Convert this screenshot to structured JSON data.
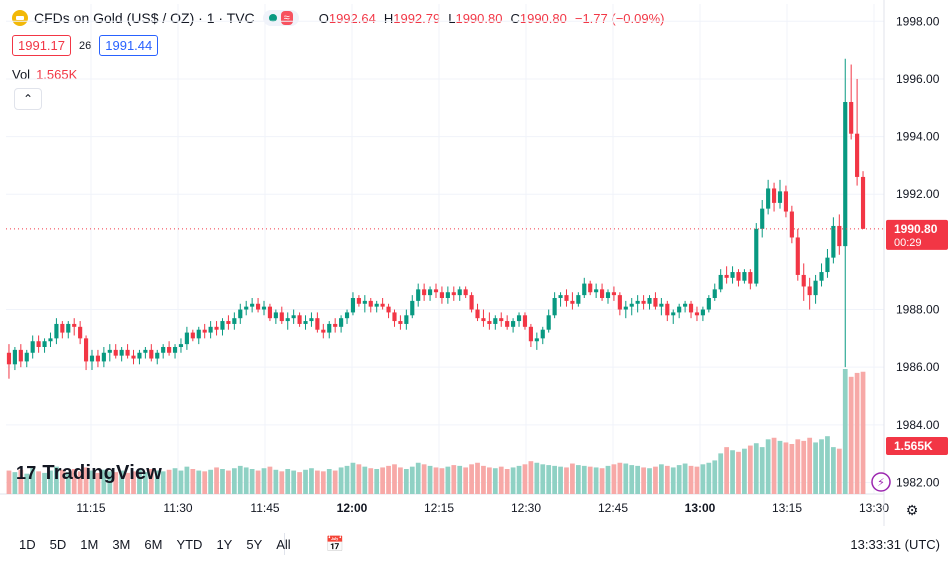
{
  "header": {
    "symbol_title": "CFDs on Gold (US$ / OZ) · 1 · TVC",
    "open_label": "O",
    "open": "1992.64",
    "high_label": "H",
    "high": "1992.79",
    "low_label": "L",
    "low": "1990.80",
    "close_label": "C",
    "close": "1990.80",
    "change": "−1.77 (−0.09%)",
    "bid": "1991.17",
    "spread": "26",
    "ask": "1991.44",
    "wave_icon_text": "≈"
  },
  "volume_legend": {
    "label": "Vol",
    "value": "1.565K"
  },
  "logo_text": "TradingView",
  "bottom_bar": {
    "ranges": [
      "1D",
      "5D",
      "1M",
      "3M",
      "6M",
      "YTD",
      "1Y",
      "5Y",
      "All"
    ],
    "clock": "13:33:31 (UTC)"
  },
  "colors": {
    "up": "#089981",
    "down": "#f23645",
    "up_vol": "#8fd1c4",
    "down_vol": "#f7a9a7",
    "grid": "#f0f3fa",
    "price_line": "#f23645"
  },
  "chart_data": {
    "type": "candlestick",
    "x_ticks": [
      "11:15",
      "11:30",
      "11:45",
      "12:00",
      "12:15",
      "12:30",
      "12:45",
      "13:00",
      "13:15",
      "13:30"
    ],
    "y_ticks": [
      "1998.00",
      "1996.00",
      "1994.00",
      "1992.00",
      "1988.00",
      "1986.00",
      "1984.00",
      "1982.00"
    ],
    "ylim": [
      1981.6,
      1998.6
    ],
    "last_price": "1990.80",
    "countdown": "00:29",
    "volume_label": "1.565K",
    "candles": [
      [
        1986.5,
        1986.8,
        1985.6,
        1986.1
      ],
      [
        1986.1,
        1986.7,
        1985.9,
        1986.6
      ],
      [
        1986.6,
        1986.8,
        1986.0,
        1986.2
      ],
      [
        1986.2,
        1986.6,
        1986.0,
        1986.5
      ],
      [
        1986.5,
        1987.1,
        1986.3,
        1986.9
      ],
      [
        1986.9,
        1987.1,
        1986.5,
        1986.7
      ],
      [
        1986.7,
        1987.0,
        1986.5,
        1986.9
      ],
      [
        1986.9,
        1987.2,
        1986.7,
        1987.0
      ],
      [
        1987.0,
        1987.7,
        1986.8,
        1987.5
      ],
      [
        1987.5,
        1987.6,
        1987.0,
        1987.2
      ],
      [
        1987.2,
        1987.6,
        1987.0,
        1987.5
      ],
      [
        1987.5,
        1987.7,
        1987.1,
        1987.4
      ],
      [
        1987.4,
        1987.6,
        1986.8,
        1987.0
      ],
      [
        1987.0,
        1987.1,
        1985.9,
        1986.2
      ],
      [
        1986.2,
        1986.6,
        1985.9,
        1986.4
      ],
      [
        1986.4,
        1986.6,
        1986.0,
        1986.2
      ],
      [
        1986.2,
        1986.7,
        1986.0,
        1986.5
      ],
      [
        1986.5,
        1986.8,
        1986.2,
        1986.6
      ],
      [
        1986.6,
        1986.8,
        1986.3,
        1986.4
      ],
      [
        1986.4,
        1986.7,
        1986.2,
        1986.6
      ],
      [
        1986.6,
        1986.8,
        1986.3,
        1986.4
      ],
      [
        1986.4,
        1986.6,
        1986.1,
        1986.3
      ],
      [
        1986.3,
        1986.6,
        1986.1,
        1986.5
      ],
      [
        1986.5,
        1986.7,
        1986.3,
        1986.6
      ],
      [
        1986.6,
        1986.8,
        1986.2,
        1986.3
      ],
      [
        1986.3,
        1986.6,
        1986.1,
        1986.5
      ],
      [
        1986.5,
        1986.8,
        1986.3,
        1986.7
      ],
      [
        1986.7,
        1986.9,
        1986.4,
        1986.5
      ],
      [
        1986.5,
        1986.8,
        1986.3,
        1986.7
      ],
      [
        1986.7,
        1987.0,
        1986.5,
        1986.8
      ],
      [
        1986.8,
        1987.4,
        1986.6,
        1987.2
      ],
      [
        1987.2,
        1987.3,
        1986.9,
        1987.0
      ],
      [
        1987.0,
        1987.4,
        1986.8,
        1987.3
      ],
      [
        1987.3,
        1987.5,
        1987.0,
        1987.2
      ],
      [
        1987.2,
        1987.6,
        1987.0,
        1987.4
      ],
      [
        1987.4,
        1987.6,
        1987.1,
        1987.3
      ],
      [
        1987.3,
        1987.7,
        1987.1,
        1987.6
      ],
      [
        1987.6,
        1987.8,
        1987.3,
        1987.5
      ],
      [
        1987.5,
        1987.9,
        1987.3,
        1987.7
      ],
      [
        1987.7,
        1988.2,
        1987.5,
        1988.0
      ],
      [
        1988.0,
        1988.3,
        1987.8,
        1988.1
      ],
      [
        1988.1,
        1988.4,
        1987.9,
        1988.2
      ],
      [
        1988.2,
        1988.4,
        1987.9,
        1988.0
      ],
      [
        1988.0,
        1988.3,
        1987.8,
        1988.1
      ],
      [
        1988.1,
        1988.2,
        1987.6,
        1987.7
      ],
      [
        1987.7,
        1988.0,
        1987.5,
        1987.9
      ],
      [
        1987.9,
        1988.1,
        1987.5,
        1987.6
      ],
      [
        1987.6,
        1987.9,
        1987.3,
        1987.7
      ],
      [
        1987.7,
        1988.0,
        1987.5,
        1987.8
      ],
      [
        1987.8,
        1987.9,
        1987.4,
        1987.5
      ],
      [
        1987.5,
        1987.8,
        1987.3,
        1987.6
      ],
      [
        1987.6,
        1987.9,
        1987.4,
        1987.7
      ],
      [
        1987.7,
        1987.9,
        1987.2,
        1987.3
      ],
      [
        1987.3,
        1987.5,
        1987.0,
        1987.2
      ],
      [
        1987.2,
        1987.6,
        1987.0,
        1987.5
      ],
      [
        1987.5,
        1987.7,
        1987.2,
        1987.4
      ],
      [
        1987.4,
        1987.8,
        1987.2,
        1987.7
      ],
      [
        1987.7,
        1988.0,
        1987.5,
        1987.9
      ],
      [
        1987.9,
        1988.6,
        1987.8,
        1988.4
      ],
      [
        1988.4,
        1988.5,
        1988.1,
        1988.2
      ],
      [
        1988.2,
        1988.5,
        1987.9,
        1988.3
      ],
      [
        1988.3,
        1988.4,
        1987.9,
        1988.1
      ],
      [
        1988.1,
        1988.3,
        1987.9,
        1988.2
      ],
      [
        1988.2,
        1988.4,
        1988.0,
        1988.1
      ],
      [
        1988.1,
        1988.2,
        1987.7,
        1987.9
      ],
      [
        1987.9,
        1988.0,
        1987.4,
        1987.6
      ],
      [
        1987.6,
        1987.8,
        1987.3,
        1987.5
      ],
      [
        1987.5,
        1988.0,
        1987.3,
        1987.8
      ],
      [
        1987.8,
        1988.5,
        1987.7,
        1988.3
      ],
      [
        1988.3,
        1988.9,
        1988.1,
        1988.7
      ],
      [
        1988.7,
        1988.9,
        1988.3,
        1988.5
      ],
      [
        1988.5,
        1988.8,
        1988.3,
        1988.7
      ],
      [
        1988.7,
        1988.9,
        1988.4,
        1988.6
      ],
      [
        1988.6,
        1988.8,
        1988.2,
        1988.4
      ],
      [
        1988.4,
        1988.8,
        1988.2,
        1988.6
      ],
      [
        1988.6,
        1988.8,
        1988.3,
        1988.5
      ],
      [
        1988.5,
        1988.8,
        1988.3,
        1988.7
      ],
      [
        1988.7,
        1988.8,
        1988.4,
        1988.5
      ],
      [
        1988.5,
        1988.6,
        1987.9,
        1988.0
      ],
      [
        1988.0,
        1988.2,
        1987.6,
        1987.7
      ],
      [
        1987.7,
        1988.0,
        1987.4,
        1987.6
      ],
      [
        1987.6,
        1987.9,
        1987.3,
        1987.5
      ],
      [
        1987.5,
        1987.8,
        1987.3,
        1987.7
      ],
      [
        1987.7,
        1987.9,
        1987.4,
        1987.6
      ],
      [
        1987.6,
        1987.8,
        1987.3,
        1987.4
      ],
      [
        1987.4,
        1987.7,
        1987.2,
        1987.6
      ],
      [
        1987.6,
        1987.9,
        1987.4,
        1987.8
      ],
      [
        1987.8,
        1987.9,
        1987.3,
        1987.4
      ],
      [
        1987.4,
        1987.5,
        1986.7,
        1986.9
      ],
      [
        1986.9,
        1987.2,
        1986.6,
        1987.0
      ],
      [
        1987.0,
        1987.4,
        1986.8,
        1987.3
      ],
      [
        1987.3,
        1988.0,
        1987.2,
        1987.8
      ],
      [
        1987.8,
        1988.6,
        1987.7,
        1988.4
      ],
      [
        1988.4,
        1988.6,
        1988.1,
        1988.5
      ],
      [
        1988.5,
        1988.7,
        1988.1,
        1988.3
      ],
      [
        1988.3,
        1988.6,
        1988.0,
        1988.2
      ],
      [
        1988.2,
        1988.6,
        1988.1,
        1988.5
      ],
      [
        1988.5,
        1989.1,
        1988.4,
        1988.9
      ],
      [
        1988.9,
        1989.0,
        1988.5,
        1988.6
      ],
      [
        1988.6,
        1988.9,
        1988.4,
        1988.7
      ],
      [
        1988.7,
        1988.9,
        1988.3,
        1988.4
      ],
      [
        1988.4,
        1988.7,
        1988.2,
        1988.6
      ],
      [
        1988.6,
        1988.8,
        1988.3,
        1988.5
      ],
      [
        1988.5,
        1988.6,
        1987.8,
        1988.0
      ],
      [
        1988.0,
        1988.3,
        1987.7,
        1988.1
      ],
      [
        1988.1,
        1988.4,
        1987.8,
        1988.2
      ],
      [
        1988.2,
        1988.5,
        1987.9,
        1988.3
      ],
      [
        1988.3,
        1988.5,
        1988.0,
        1988.2
      ],
      [
        1988.2,
        1988.5,
        1988.0,
        1988.4
      ],
      [
        1988.4,
        1988.6,
        1988.0,
        1988.1
      ],
      [
        1988.1,
        1988.4,
        1987.8,
        1988.2
      ],
      [
        1988.2,
        1988.3,
        1987.6,
        1987.8
      ],
      [
        1987.8,
        1988.0,
        1987.5,
        1987.9
      ],
      [
        1987.9,
        1988.2,
        1987.7,
        1988.1
      ],
      [
        1988.1,
        1988.3,
        1987.9,
        1988.2
      ],
      [
        1988.2,
        1988.3,
        1987.7,
        1987.9
      ],
      [
        1987.9,
        1988.1,
        1987.6,
        1987.8
      ],
      [
        1987.8,
        1988.1,
        1987.6,
        1988.0
      ],
      [
        1988.0,
        1988.5,
        1987.9,
        1988.4
      ],
      [
        1988.4,
        1988.9,
        1988.3,
        1988.7
      ],
      [
        1988.7,
        1989.4,
        1988.6,
        1989.2
      ],
      [
        1989.2,
        1989.5,
        1988.9,
        1989.1
      ],
      [
        1989.1,
        1989.5,
        1988.9,
        1989.3
      ],
      [
        1989.3,
        1989.4,
        1988.8,
        1989.0
      ],
      [
        1989.0,
        1989.4,
        1988.9,
        1989.3
      ],
      [
        1989.3,
        1989.4,
        1988.7,
        1988.9
      ],
      [
        1988.9,
        1991.0,
        1988.8,
        1990.8
      ],
      [
        1990.8,
        1991.8,
        1990.5,
        1991.5
      ],
      [
        1991.5,
        1992.5,
        1991.3,
        1992.2
      ],
      [
        1992.2,
        1992.4,
        1991.4,
        1991.7
      ],
      [
        1991.7,
        1992.5,
        1991.5,
        1992.1
      ],
      [
        1992.1,
        1992.3,
        1991.2,
        1991.4
      ],
      [
        1991.4,
        1991.6,
        1990.3,
        1990.5
      ],
      [
        1990.5,
        1990.8,
        1989.0,
        1989.2
      ],
      [
        1989.2,
        1989.6,
        1988.3,
        1988.8
      ],
      [
        1988.8,
        1989.1,
        1988.0,
        1988.5
      ],
      [
        1988.5,
        1989.2,
        1988.2,
        1989.0
      ],
      [
        1989.0,
        1989.6,
        1988.8,
        1989.3
      ],
      [
        1989.3,
        1990.1,
        1989.1,
        1989.8
      ],
      [
        1989.8,
        1991.2,
        1989.6,
        1990.9
      ],
      [
        1990.9,
        1991.3,
        1989.9,
        1990.2
      ],
      [
        1990.2,
        1996.7,
        1986.0,
        1995.2
      ],
      [
        1995.2,
        1996.5,
        1993.9,
        1994.1
      ],
      [
        1994.1,
        1996.0,
        1992.3,
        1992.6
      ],
      [
        1992.6,
        1992.8,
        1990.8,
        1990.8
      ]
    ],
    "volumes": [
      300,
      280,
      310,
      260,
      330,
      290,
      270,
      300,
      350,
      310,
      280,
      320,
      290,
      340,
      300,
      270,
      310,
      290,
      280,
      300,
      270,
      290,
      310,
      280,
      320,
      300,
      290,
      310,
      330,
      300,
      350,
      320,
      300,
      290,
      310,
      340,
      320,
      300,
      330,
      360,
      340,
      320,
      300,
      330,
      350,
      310,
      290,
      320,
      300,
      280,
      310,
      330,
      300,
      290,
      320,
      300,
      340,
      360,
      400,
      380,
      350,
      330,
      320,
      340,
      360,
      380,
      340,
      320,
      350,
      400,
      380,
      360,
      340,
      330,
      350,
      370,
      360,
      340,
      380,
      400,
      360,
      340,
      330,
      350,
      320,
      340,
      360,
      380,
      420,
      400,
      380,
      370,
      360,
      350,
      340,
      390,
      370,
      360,
      350,
      340,
      330,
      360,
      380,
      400,
      390,
      370,
      360,
      340,
      330,
      350,
      380,
      360,
      340,
      370,
      390,
      360,
      350,
      380,
      400,
      430,
      520,
      600,
      560,
      540,
      580,
      620,
      650,
      600,
      700,
      720,
      680,
      660,
      640,
      700,
      680,
      720,
      660,
      700,
      740,
      600,
      580,
      1600,
      1500,
      1550,
      1565
    ]
  }
}
